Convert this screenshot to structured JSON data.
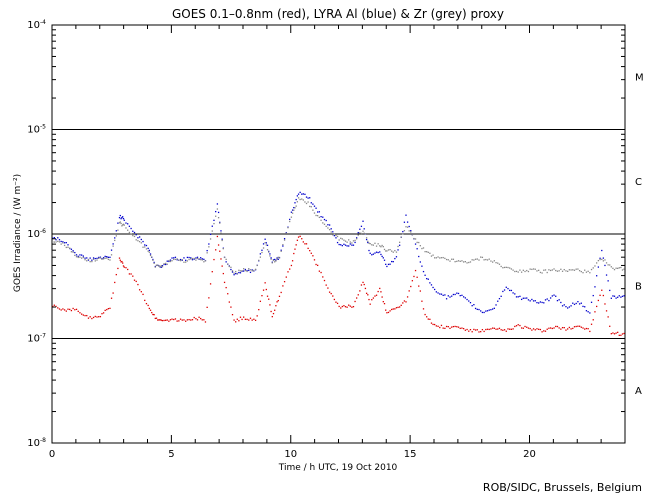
{
  "chart_data": {
    "type": "scatter",
    "title": "GOES 0.1–0.8nm (red), LYRA Al (blue) & Zr (grey) proxy",
    "xlabel": "Time / h UTC, 19 Oct 2010",
    "ylabel": "GOES Irradiance / (W m⁻²)",
    "xlim": [
      0,
      24
    ],
    "ylim": [
      1e-08,
      0.0001
    ],
    "yscale": "log",
    "x_ticks": [
      0,
      5,
      10,
      15,
      20
    ],
    "x_tick_labels": [
      "0",
      "5",
      "10",
      "15",
      "20"
    ],
    "y_tick_labels": [
      {
        "value": 1e-08,
        "base": "10",
        "exp": "-8"
      },
      {
        "value": 1e-07,
        "base": "10",
        "exp": "-7"
      },
      {
        "value": 1e-06,
        "base": "10",
        "exp": "-6"
      },
      {
        "value": 1e-05,
        "base": "10",
        "exp": "-5"
      },
      {
        "value": 0.0001,
        "base": "10",
        "exp": "-4"
      }
    ],
    "class_lines": [
      1e-07,
      1e-06,
      1e-05
    ],
    "flare_classes": [
      {
        "label": "A",
        "value": 3.2e-08
      },
      {
        "label": "B",
        "value": 3.2e-07
      },
      {
        "label": "C",
        "value": 3.2e-06
      },
      {
        "label": "M",
        "value": 3.2e-05
      }
    ],
    "grid": false,
    "series": [
      {
        "name": "GOES 0.1–0.8nm",
        "color": "#dd0000",
        "x": [
          0,
          0.5,
          1.0,
          1.5,
          2.0,
          2.4,
          2.8,
          3.0,
          3.5,
          4.0,
          4.3,
          4.6,
          5.0,
          5.5,
          6.0,
          6.4,
          6.9,
          7.2,
          7.6,
          8.0,
          8.5,
          8.9,
          9.2,
          9.5,
          10.0,
          10.3,
          10.7,
          11.1,
          11.6,
          12.0,
          12.6,
          13.0,
          13.3,
          13.7,
          14.0,
          14.4,
          14.8,
          15.2,
          15.6,
          16.0,
          16.5,
          17.0,
          17.5,
          18.0,
          18.5,
          19.0,
          19.5,
          20.0,
          20.5,
          21.0,
          21.5,
          22.0,
          22.5,
          23.0,
          23.4,
          24.0
        ],
        "y": [
          2.1e-07,
          1.85e-07,
          1.95e-07,
          1.6e-07,
          1.7e-07,
          2e-07,
          5.8e-07,
          5e-07,
          3.5e-07,
          2.1e-07,
          1.6e-07,
          1.5e-07,
          1.55e-07,
          1.5e-07,
          1.6e-07,
          1.5e-07,
          9.5e-07,
          3.5e-07,
          1.5e-07,
          1.6e-07,
          1.5e-07,
          3.4e-07,
          1.6e-07,
          2.6e-07,
          5.2e-07,
          9.8e-07,
          7.6e-07,
          5e-07,
          2.9e-07,
          2e-07,
          2.1e-07,
          3.5e-07,
          2.2e-07,
          3e-07,
          1.8e-07,
          2e-07,
          2.3e-07,
          4.6e-07,
          1.7e-07,
          1.35e-07,
          1.3e-07,
          1.3e-07,
          1.2e-07,
          1.2e-07,
          1.25e-07,
          1.2e-07,
          1.35e-07,
          1.25e-07,
          1.2e-07,
          1.3e-07,
          1.25e-07,
          1.35e-07,
          1.2e-07,
          3e-07,
          1.15e-07,
          1.1e-07
        ]
      },
      {
        "name": "LYRA Al proxy",
        "color": "#0000cc",
        "x": [
          0,
          0.5,
          1.0,
          1.5,
          2.0,
          2.4,
          2.8,
          3.0,
          3.5,
          4.0,
          4.3,
          4.6,
          5.0,
          5.5,
          6.0,
          6.4,
          6.9,
          7.2,
          7.6,
          8.0,
          8.5,
          8.9,
          9.2,
          9.5,
          10.0,
          10.3,
          10.7,
          11.1,
          11.6,
          12.0,
          12.6,
          13.0,
          13.3,
          13.7,
          14.0,
          14.4,
          14.8,
          15.2,
          15.6,
          16.0,
          16.5,
          17.0,
          17.5,
          18.0,
          18.5,
          19.0,
          19.5,
          20.0,
          20.5,
          21.0,
          21.5,
          22.0,
          22.5,
          23.0,
          23.4,
          24.0
        ],
        "y": [
          9.5e-07,
          8.5e-07,
          6.5e-07,
          5.8e-07,
          6e-07,
          6e-07,
          1.5e-06,
          1.4e-06,
          1e-06,
          7.5e-07,
          5e-07,
          5e-07,
          6e-07,
          5.8e-07,
          6e-07,
          5.8e-07,
          2e-06,
          6e-07,
          4.2e-07,
          4.5e-07,
          4.5e-07,
          9e-07,
          5.5e-07,
          6e-07,
          1.6e-06,
          2.5e-06,
          2.3e-06,
          1.7e-06,
          1.2e-06,
          8e-07,
          8e-07,
          1.3e-06,
          6.5e-07,
          7e-07,
          5e-07,
          6e-07,
          1.5e-06,
          8e-07,
          4e-07,
          3e-07,
          2.5e-07,
          2.7e-07,
          2.2e-07,
          1.8e-07,
          2e-07,
          3.2e-07,
          2.5e-07,
          2.4e-07,
          2.2e-07,
          2.6e-07,
          2e-07,
          2.3e-07,
          1.8e-07,
          7e-07,
          2.5e-07,
          2.6e-07
        ]
      },
      {
        "name": "LYRA Zr proxy",
        "color": "#888888",
        "x": [
          0,
          0.5,
          1.0,
          1.5,
          2.0,
          2.4,
          2.8,
          3.0,
          3.5,
          4.0,
          4.3,
          4.6,
          5.0,
          5.5,
          6.0,
          6.4,
          6.9,
          7.2,
          7.6,
          8.0,
          8.5,
          8.9,
          9.2,
          9.5,
          10.0,
          10.3,
          10.7,
          11.1,
          11.6,
          12.0,
          12.6,
          13.0,
          13.3,
          13.7,
          14.0,
          14.4,
          14.8,
          15.2,
          15.6,
          16.0,
          16.5,
          17.0,
          17.5,
          18.0,
          18.5,
          19.0,
          19.5,
          20.0,
          20.5,
          21.0,
          21.5,
          22.0,
          22.5,
          23.0,
          23.4,
          24.0
        ],
        "y": [
          8.8e-07,
          8e-07,
          6.2e-07,
          5.6e-07,
          5.8e-07,
          5.8e-07,
          1.3e-06,
          1.2e-06,
          9e-07,
          7e-07,
          5e-07,
          5e-07,
          5.8e-07,
          5.6e-07,
          5.8e-07,
          5.6e-07,
          1.8e-06,
          6e-07,
          4.3e-07,
          4.6e-07,
          4.6e-07,
          8.5e-07,
          5.4e-07,
          6e-07,
          1.5e-06,
          2.2e-06,
          2e-06,
          1.5e-06,
          1.1e-06,
          9e-07,
          8.5e-07,
          1.1e-06,
          8e-07,
          8e-07,
          7e-07,
          7e-07,
          1.2e-06,
          9e-07,
          7e-07,
          6e-07,
          5.8e-07,
          5.5e-07,
          5.5e-07,
          6e-07,
          5.5e-07,
          4.8e-07,
          4.5e-07,
          4.6e-07,
          4.4e-07,
          4.6e-07,
          4.5e-07,
          4.6e-07,
          4.3e-07,
          6e-07,
          4.8e-07,
          4.7e-07
        ]
      }
    ]
  },
  "credit": "ROB/SIDC, Brussels, Belgium"
}
